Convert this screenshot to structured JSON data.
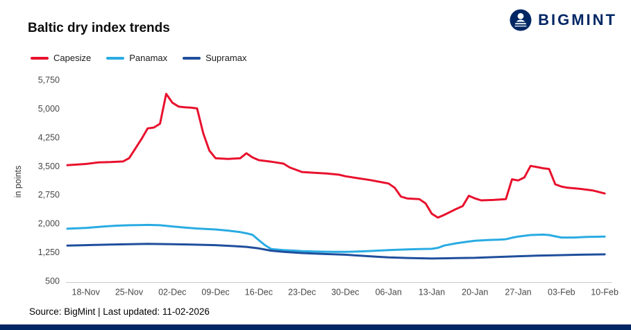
{
  "header": {
    "title": "Baltic dry index trends",
    "logo_text": "BIGMINT"
  },
  "footer": {
    "source": "Source: BigMint | Last updated: 11-02-2026"
  },
  "colors": {
    "brand_navy": "#002664",
    "capesize_red": "#e8112d",
    "panamax_blue": "#29abe2",
    "supramax_navy": "#1f4e9c",
    "axis_line": "#c9c9c9"
  },
  "chart_data": {
    "type": "line",
    "title": "Baltic dry index trends",
    "xlabel": "",
    "ylabel": "in points",
    "ylim": [
      500,
      5750
    ],
    "y_ticks": [
      500,
      1250,
      2000,
      2750,
      3500,
      4250,
      5000,
      5750
    ],
    "y_tick_labels": [
      "500",
      "1,250",
      "2,000",
      "2,750",
      "3,500",
      "4,250",
      "5,000",
      "5,750"
    ],
    "x_units": "days relative to 18-Nov",
    "x_domain_days": [
      -3,
      85
    ],
    "x_tick_days": [
      0,
      7,
      14,
      21,
      28,
      35,
      42,
      49,
      56,
      63,
      70,
      77,
      84
    ],
    "x_tick_labels": [
      "18-Nov",
      "25-Nov",
      "02-Dec",
      "09-Dec",
      "16-Dec",
      "23-Dec",
      "30-Dec",
      "06-Jan",
      "13-Jan",
      "20-Jan",
      "27-Jan",
      "03-Feb",
      "10-Feb"
    ],
    "grid": false,
    "legend_position": "top-left",
    "series": [
      {
        "name": "Capesize",
        "color": "#e8112d",
        "points": [
          [
            -3,
            3520
          ],
          [
            0,
            3550
          ],
          [
            2,
            3590
          ],
          [
            4,
            3600
          ],
          [
            6,
            3615
          ],
          [
            7,
            3700
          ],
          [
            8,
            3950
          ],
          [
            9,
            4200
          ],
          [
            10,
            4480
          ],
          [
            11,
            4500
          ],
          [
            12,
            4600
          ],
          [
            13,
            5380
          ],
          [
            14,
            5150
          ],
          [
            15,
            5050
          ],
          [
            16,
            5030
          ],
          [
            17,
            5020
          ],
          [
            18,
            5000
          ],
          [
            19,
            4350
          ],
          [
            20,
            3900
          ],
          [
            21,
            3700
          ],
          [
            23,
            3680
          ],
          [
            25,
            3700
          ],
          [
            26,
            3830
          ],
          [
            27,
            3720
          ],
          [
            28,
            3650
          ],
          [
            30,
            3610
          ],
          [
            32,
            3560
          ],
          [
            33,
            3460
          ],
          [
            35,
            3340
          ],
          [
            37,
            3320
          ],
          [
            39,
            3300
          ],
          [
            41,
            3270
          ],
          [
            42,
            3230
          ],
          [
            44,
            3180
          ],
          [
            46,
            3130
          ],
          [
            48,
            3070
          ],
          [
            49,
            3040
          ],
          [
            50,
            2930
          ],
          [
            51,
            2700
          ],
          [
            52,
            2650
          ],
          [
            54,
            2630
          ],
          [
            55,
            2520
          ],
          [
            56,
            2250
          ],
          [
            57,
            2150
          ],
          [
            58,
            2220
          ],
          [
            59,
            2300
          ],
          [
            60,
            2380
          ],
          [
            61,
            2450
          ],
          [
            62,
            2720
          ],
          [
            63,
            2650
          ],
          [
            64,
            2600
          ],
          [
            66,
            2610
          ],
          [
            68,
            2630
          ],
          [
            69,
            3150
          ],
          [
            70,
            3120
          ],
          [
            71,
            3200
          ],
          [
            72,
            3500
          ],
          [
            73,
            3470
          ],
          [
            74,
            3440
          ],
          [
            75,
            3420
          ],
          [
            76,
            3020
          ],
          [
            77,
            2960
          ],
          [
            78,
            2930
          ],
          [
            80,
            2900
          ],
          [
            82,
            2860
          ],
          [
            83,
            2820
          ],
          [
            84,
            2780
          ]
        ]
      },
      {
        "name": "Panamax",
        "color": "#29abe2",
        "points": [
          [
            -3,
            1860
          ],
          [
            0,
            1880
          ],
          [
            3,
            1920
          ],
          [
            5,
            1940
          ],
          [
            7,
            1950
          ],
          [
            9,
            1955
          ],
          [
            10,
            1960
          ],
          [
            12,
            1950
          ],
          [
            14,
            1920
          ],
          [
            16,
            1890
          ],
          [
            18,
            1865
          ],
          [
            21,
            1840
          ],
          [
            23,
            1810
          ],
          [
            25,
            1770
          ],
          [
            26,
            1740
          ],
          [
            27,
            1700
          ],
          [
            28,
            1560
          ],
          [
            29,
            1430
          ],
          [
            30,
            1330
          ],
          [
            32,
            1300
          ],
          [
            34,
            1285
          ],
          [
            35,
            1275
          ],
          [
            38,
            1260
          ],
          [
            40,
            1255
          ],
          [
            42,
            1255
          ],
          [
            45,
            1270
          ],
          [
            47,
            1285
          ],
          [
            49,
            1300
          ],
          [
            52,
            1320
          ],
          [
            54,
            1330
          ],
          [
            56,
            1335
          ],
          [
            57,
            1360
          ],
          [
            58,
            1420
          ],
          [
            60,
            1480
          ],
          [
            62,
            1525
          ],
          [
            63,
            1545
          ],
          [
            65,
            1565
          ],
          [
            67,
            1575
          ],
          [
            68,
            1585
          ],
          [
            69,
            1625
          ],
          [
            70,
            1655
          ],
          [
            72,
            1695
          ],
          [
            74,
            1705
          ],
          [
            75,
            1695
          ],
          [
            76,
            1660
          ],
          [
            77,
            1630
          ],
          [
            79,
            1630
          ],
          [
            81,
            1645
          ],
          [
            84,
            1655
          ]
        ]
      },
      {
        "name": "Supramax",
        "color": "#1f4e9c",
        "points": [
          [
            -3,
            1420
          ],
          [
            0,
            1430
          ],
          [
            4,
            1445
          ],
          [
            7,
            1455
          ],
          [
            10,
            1465
          ],
          [
            14,
            1455
          ],
          [
            17,
            1445
          ],
          [
            21,
            1430
          ],
          [
            24,
            1405
          ],
          [
            26,
            1385
          ],
          [
            28,
            1345
          ],
          [
            30,
            1285
          ],
          [
            32,
            1255
          ],
          [
            35,
            1225
          ],
          [
            38,
            1205
          ],
          [
            42,
            1180
          ],
          [
            45,
            1150
          ],
          [
            47,
            1130
          ],
          [
            49,
            1110
          ],
          [
            52,
            1095
          ],
          [
            54,
            1088
          ],
          [
            56,
            1082
          ],
          [
            58,
            1086
          ],
          [
            60,
            1092
          ],
          [
            63,
            1100
          ],
          [
            66,
            1118
          ],
          [
            68,
            1128
          ],
          [
            70,
            1140
          ],
          [
            73,
            1155
          ],
          [
            75,
            1162
          ],
          [
            77,
            1170
          ],
          [
            80,
            1180
          ],
          [
            84,
            1190
          ]
        ]
      }
    ]
  }
}
